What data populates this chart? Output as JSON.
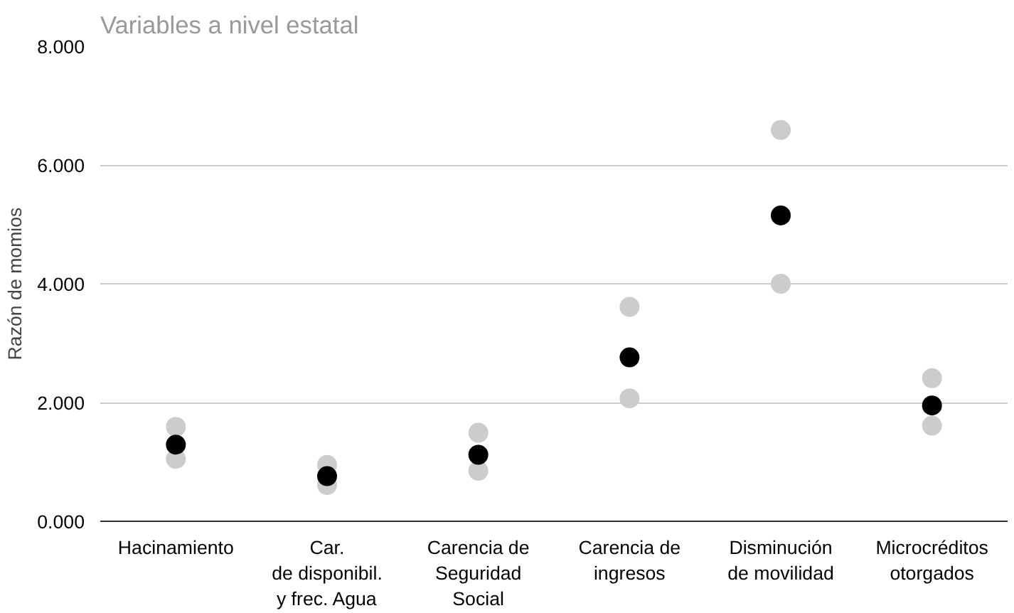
{
  "chart_data": {
    "type": "scatter",
    "title": "Variables a nivel estatal",
    "ylabel": "Razón de momios",
    "categories": [
      "Hacinamiento",
      "Car.\nde disponibil.\ny frec. Agua",
      "Carencia de\nSeguridad\nSocial",
      "Carencia de\ningresos",
      "Disminución\nde movilidad",
      "Microcréditos\notorgados"
    ],
    "series": [
      {
        "color": "#cccccc",
        "values": [
          1.05,
          0.61,
          0.85,
          2.07,
          4.0,
          1.61
        ]
      },
      {
        "color": "#cccccc",
        "values": [
          1.59,
          0.95,
          1.49,
          3.61,
          6.59,
          2.41
        ]
      },
      {
        "color": "#000000",
        "values": [
          1.29,
          0.76,
          1.12,
          2.76,
          5.15,
          1.95
        ]
      }
    ],
    "ylim": [
      0,
      8
    ],
    "yticks": [
      {
        "value": 0,
        "label": "0.000"
      },
      {
        "value": 2,
        "label": "2.000"
      },
      {
        "value": 4,
        "label": "4.000"
      },
      {
        "value": 6,
        "label": "6.000"
      },
      {
        "value": 8,
        "label": "8.000"
      }
    ],
    "grid": "y",
    "marker": "circle"
  }
}
